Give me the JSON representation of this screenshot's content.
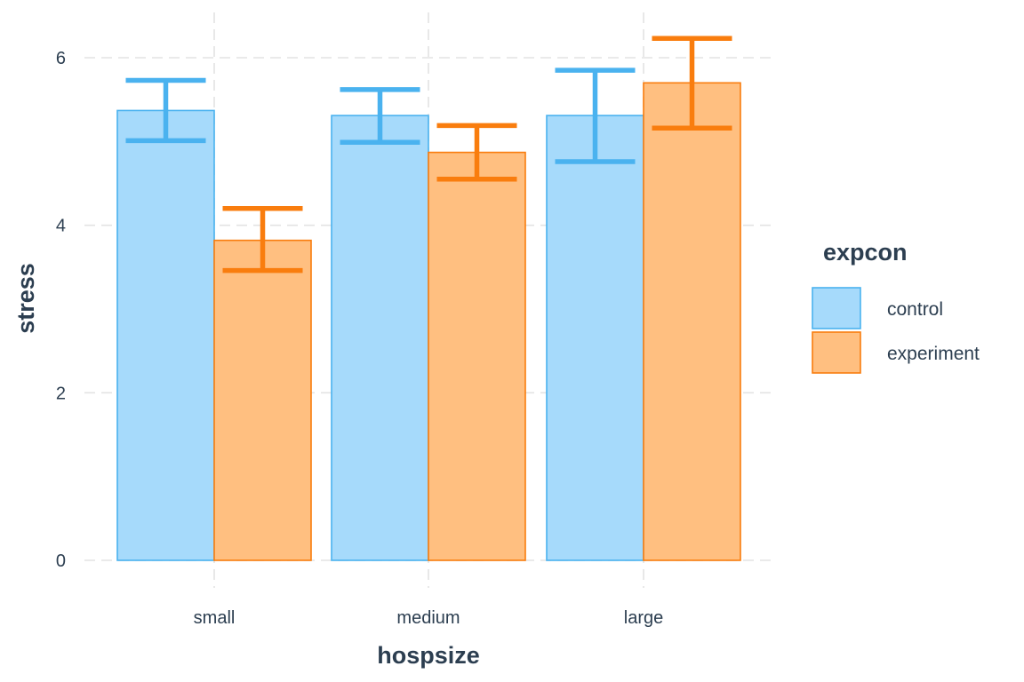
{
  "chart_data": {
    "type": "bar",
    "xlabel": "hospsize",
    "ylabel": "stress",
    "categories": [
      "small",
      "medium",
      "large"
    ],
    "ylim": [
      0,
      6.6
    ],
    "yticks": [
      0,
      2,
      4,
      6
    ],
    "grid": true,
    "legend": {
      "title": "expcon",
      "placement": "right"
    },
    "series": [
      {
        "name": "control",
        "fill": "#a6dafb",
        "stroke": "#4ab2ef",
        "values": [
          5.37,
          5.31,
          5.31
        ],
        "error_low": [
          5.01,
          4.99,
          4.76
        ],
        "error_high": [
          5.73,
          5.62,
          5.85
        ]
      },
      {
        "name": "experiment",
        "fill": "#ffbf80",
        "stroke": "#f97d0e",
        "values": [
          3.82,
          4.87,
          5.7
        ],
        "error_low": [
          3.46,
          4.55,
          5.16
        ],
        "error_high": [
          4.2,
          5.19,
          6.23
        ]
      }
    ]
  }
}
